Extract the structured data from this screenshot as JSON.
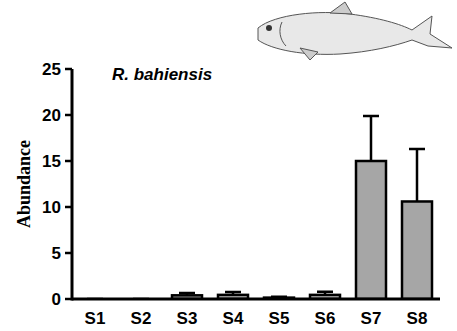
{
  "chart_data": {
    "type": "bar",
    "title": "R. bahiensis",
    "y_label": "Abundance",
    "categories": [
      "S1",
      "S2",
      "S3",
      "S4",
      "S5",
      "S6",
      "S7",
      "S8"
    ],
    "values": [
      0,
      0,
      0.4,
      0.45,
      0.15,
      0.45,
      15,
      10.6
    ],
    "errors": [
      0,
      0,
      0.25,
      0.3,
      0.1,
      0.35,
      4.9,
      5.7
    ],
    "color": "#a6a6a6",
    "ylim": [
      0,
      25
    ],
    "yticks": [
      0,
      5,
      10,
      15,
      20,
      25
    ],
    "grid": false
  }
}
